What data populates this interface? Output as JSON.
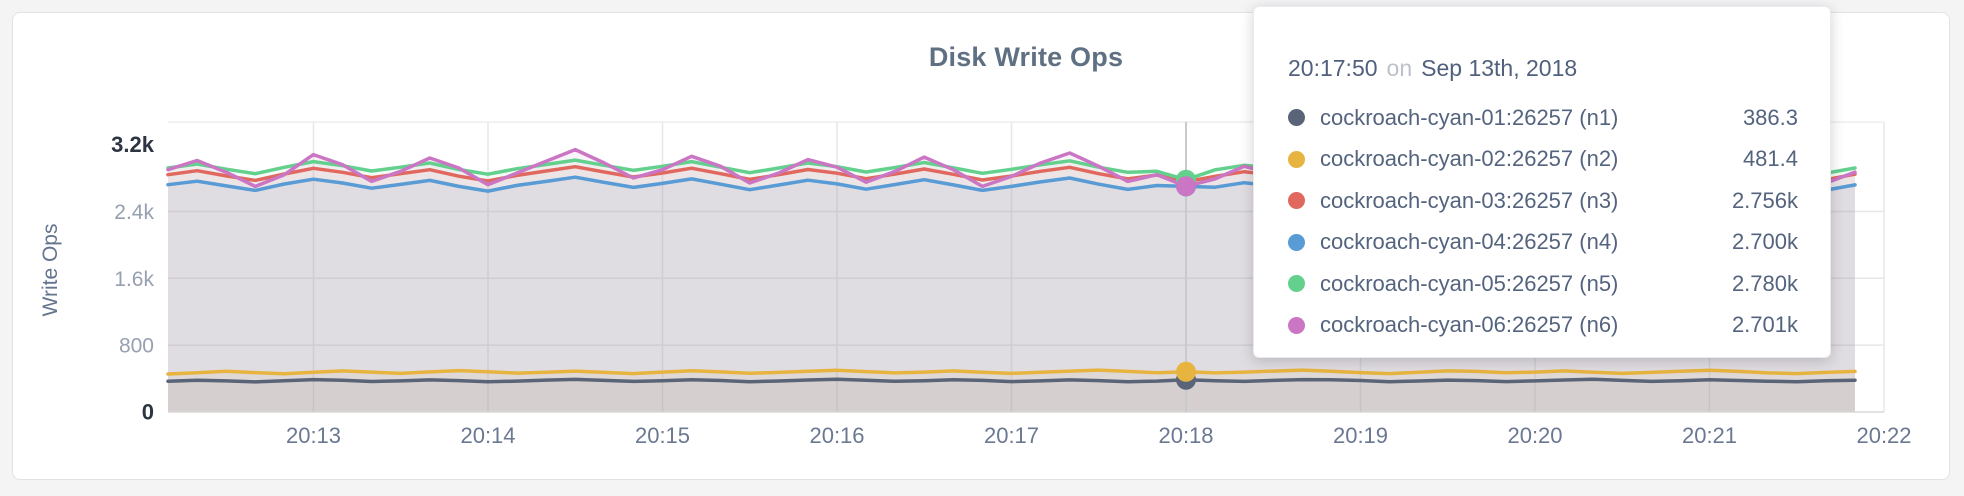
{
  "page": {
    "background": "#f4f4f5",
    "card_background": "#ffffff"
  },
  "tooltip": {
    "time": "20:17:50",
    "separator": "on",
    "date": "Sep 13th, 2018",
    "rows": [
      {
        "label": "cockroach-cyan-01:26257 (n1)",
        "value": "386.3",
        "color": "#5a6478"
      },
      {
        "label": "cockroach-cyan-02:26257 (n2)",
        "value": "481.4",
        "color": "#e8b440"
      },
      {
        "label": "cockroach-cyan-03:26257 (n3)",
        "value": "2.756k",
        "color": "#e0685f"
      },
      {
        "label": "cockroach-cyan-04:26257 (n4)",
        "value": "2.700k",
        "color": "#589bd5"
      },
      {
        "label": "cockroach-cyan-05:26257 (n5)",
        "value": "2.780k",
        "color": "#63d08d"
      },
      {
        "label": "cockroach-cyan-06:26257 (n6)",
        "value": "2.701k",
        "color": "#cb76c4"
      }
    ]
  },
  "chart_data": {
    "type": "line",
    "title": "Disk Write Ops",
    "ylabel": "Write Ops",
    "xlabel": "",
    "grid": true,
    "legend_position": "tooltip",
    "ylim": [
      0,
      3470
    ],
    "y_ticks": [
      0,
      800,
      1600,
      2400,
      3200
    ],
    "y_tick_labels": [
      "0",
      "800",
      "1.6k",
      "2.4k",
      "3.2k"
    ],
    "x_tick_labels": [
      "20:13",
      "20:14",
      "20:15",
      "20:16",
      "20:17",
      "20:18",
      "20:19",
      "20:20",
      "20:21",
      "20:22"
    ],
    "hover_index": 35,
    "hover_time": "20:17:50",
    "fill_opacity": 0.085,
    "series": [
      {
        "name": "cockroach-cyan-01:26257 (n1)",
        "color": "#5a6478",
        "hover_value": 386.3,
        "values": [
          368,
          380,
          372,
          360,
          375,
          388,
          379,
          365,
          372,
          384,
          376,
          362,
          370,
          382,
          390,
          378,
          366,
          374,
          386,
          377,
          363,
          371,
          383,
          391,
          379,
          367,
          375,
          387,
          378,
          364,
          372,
          384,
          376,
          362,
          370,
          386.3,
          374,
          366,
          378,
          388,
          385,
          377,
          363,
          371,
          382,
          376,
          364,
          372,
          383,
          391,
          378,
          366,
          374,
          385,
          377,
          369,
          361,
          373,
          381
        ]
      },
      {
        "name": "cockroach-cyan-02:26257 (n2)",
        "color": "#e8b440",
        "hover_value": 481.4,
        "values": [
          455,
          470,
          488,
          472,
          458,
          475,
          492,
          478,
          462,
          480,
          496,
          482,
          466,
          476,
          490,
          474,
          460,
          478,
          494,
          480,
          464,
          474,
          488,
          500,
          484,
          468,
          478,
          492,
          476,
          462,
          476,
          490,
          502,
          486,
          470,
          481.4,
          468,
          478,
          490,
          502,
          488,
          472,
          460,
          476,
          492,
          486,
          470,
          478,
          492,
          476,
          462,
          474,
          488,
          500,
          486,
          468,
          460,
          474,
          486
        ]
      },
      {
        "name": "cockroach-cyan-03:26257 (n3)",
        "color": "#e0685f",
        "hover_value": 2756,
        "values": [
          2840,
          2888,
          2826,
          2772,
          2848,
          2916,
          2868,
          2804,
          2852,
          2900,
          2822,
          2764,
          2832,
          2884,
          2936,
          2872,
          2812,
          2860,
          2918,
          2852,
          2784,
          2840,
          2902,
          2858,
          2792,
          2848,
          2908,
          2844,
          2776,
          2824,
          2880,
          2928,
          2852,
          2790,
          2836,
          2756,
          2820,
          2876,
          2840,
          2784,
          2922,
          2864,
          2800,
          2846,
          2890,
          2848,
          2896,
          2832,
          2772,
          2838,
          2884,
          2926,
          2860,
          2800,
          2852,
          2896,
          2838,
          2780,
          2846
        ]
      },
      {
        "name": "cockroach-cyan-04:26257 (n4)",
        "color": "#589bd5",
        "hover_value": 2700,
        "values": [
          2720,
          2762,
          2706,
          2652,
          2728,
          2786,
          2740,
          2678,
          2724,
          2772,
          2700,
          2644,
          2712,
          2760,
          2810,
          2748,
          2688,
          2736,
          2790,
          2726,
          2660,
          2716,
          2774,
          2730,
          2666,
          2722,
          2780,
          2718,
          2652,
          2700,
          2754,
          2800,
          2726,
          2664,
          2710,
          2700,
          2690,
          2744,
          2708,
          2654,
          2794,
          2736,
          2674,
          2718,
          2762,
          2716,
          2768,
          2704,
          2646,
          2710,
          2756,
          2798,
          2732,
          2672,
          2724,
          2770,
          2712,
          2656,
          2718
        ]
      },
      {
        "name": "cockroach-cyan-05:26257 (n5)",
        "color": "#63d08d",
        "hover_value": 2780,
        "values": [
          2920,
          2968,
          2906,
          2852,
          2928,
          2996,
          2948,
          2884,
          2930,
          2980,
          2902,
          2846,
          2912,
          2962,
          3014,
          2952,
          2892,
          2940,
          2996,
          2930,
          2864,
          2920,
          2980,
          2936,
          2872,
          2926,
          2986,
          2922,
          2856,
          2904,
          2958,
          3006,
          2930,
          2868,
          2880,
          2780,
          2898,
          2952,
          2916,
          2862,
          3000,
          2942,
          2880,
          2924,
          2968,
          2926,
          2974,
          2910,
          2850,
          2916,
          2962,
          3004,
          2938,
          2876,
          2928,
          2972,
          2914,
          2858,
          2920
        ]
      },
      {
        "name": "cockroach-cyan-06:26257 (n6)",
        "color": "#cb76c4",
        "hover_value": 2701,
        "values": [
          2900,
          3010,
          2870,
          2700,
          2840,
          3080,
          2960,
          2760,
          2880,
          3040,
          2920,
          2720,
          2860,
          3000,
          3140,
          2980,
          2800,
          2900,
          3060,
          2940,
          2740,
          2860,
          3020,
          2930,
          2750,
          2880,
          3050,
          2900,
          2700,
          2820,
          2980,
          3100,
          2940,
          2760,
          2840,
          2701,
          2790,
          2940,
          2850,
          2720,
          3120,
          2960,
          2780,
          2864,
          2950,
          2880,
          3020,
          2900,
          2710,
          2850,
          2980,
          3110,
          2950,
          2820,
          2900,
          3030,
          2920,
          2740,
          2870
        ]
      }
    ]
  }
}
